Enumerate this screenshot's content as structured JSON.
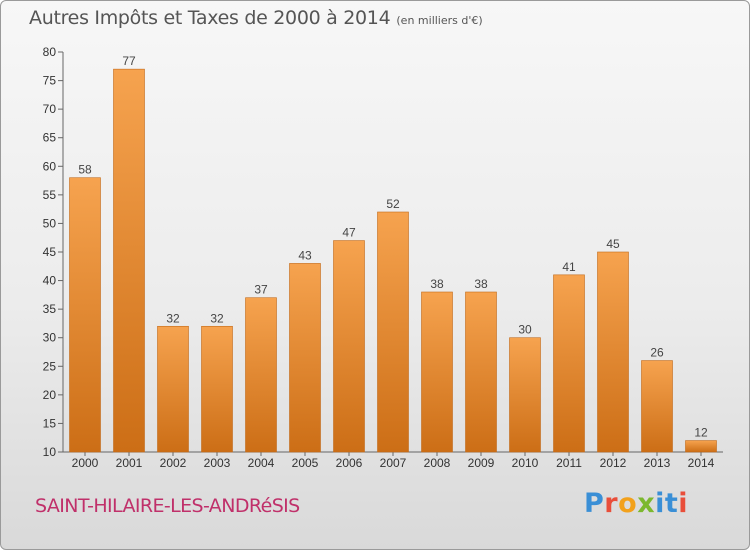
{
  "header": {
    "title": "Autres Impôts et Taxes de 2000 à 2014",
    "unit": "(en milliers d'€)"
  },
  "footer": {
    "commune": "SAINT-HILAIRE-LES-ANDRéSIS",
    "logo": "Proxiti"
  },
  "colors": {
    "bar_top": "#f6a34f",
    "bar_bottom": "#cc6e16",
    "title": "#555555",
    "commune": "#c0306a"
  },
  "chart_data": {
    "type": "bar",
    "categories": [
      "2000",
      "2001",
      "2002",
      "2003",
      "2004",
      "2005",
      "2006",
      "2007",
      "2008",
      "2009",
      "2010",
      "2011",
      "2012",
      "2013",
      "2014"
    ],
    "values": [
      58,
      77,
      32,
      32,
      37,
      43,
      47,
      52,
      38,
      38,
      30,
      41,
      45,
      26,
      12
    ],
    "ylim": [
      10,
      80
    ],
    "yticks": [
      10,
      15,
      20,
      25,
      30,
      35,
      40,
      45,
      50,
      55,
      60,
      65,
      70,
      75,
      80
    ],
    "grid": false,
    "data_labels": true
  }
}
